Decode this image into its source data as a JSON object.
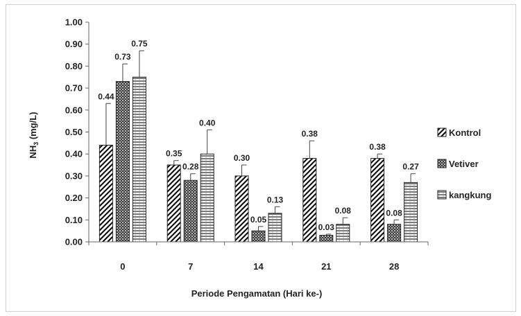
{
  "chart_data": {
    "type": "bar",
    "title": "",
    "xlabel": "Periode Pengamatan (Hari ke-)",
    "ylabel": "NH",
    "ylabel_sub": "3",
    "ylabel_unit": " (mg/L)",
    "ylim": [
      0,
      1.0
    ],
    "ytick_step": 0.1,
    "ytick_labels": [
      "0.00",
      "0.10",
      "0.20",
      "0.30",
      "0.40",
      "0.50",
      "0.60",
      "0.70",
      "0.80",
      "0.90",
      "1.00"
    ],
    "categories": [
      "0",
      "7",
      "14",
      "21",
      "28"
    ],
    "grid": false,
    "legend_position": "right",
    "error_bars": true,
    "series": [
      {
        "name": "Kontrol",
        "pattern": "diagonal",
        "values": [
          0.44,
          0.35,
          0.3,
          0.38,
          0.38
        ],
        "labels": [
          "0.44",
          "0.35",
          "0.30",
          "0.38",
          "0.38"
        ],
        "errors": [
          0.19,
          0.02,
          0.05,
          0.08,
          0.02
        ]
      },
      {
        "name": "Vetiver",
        "pattern": "crosshatch",
        "values": [
          0.73,
          0.28,
          0.05,
          0.03,
          0.08
        ],
        "labels": [
          "0.73",
          "0.28",
          "0.05",
          "0.03",
          "0.08"
        ],
        "errors": [
          0.08,
          0.03,
          0.02,
          0.005,
          0.02
        ]
      },
      {
        "name": "kangkung",
        "pattern": "horizontal",
        "values": [
          0.75,
          0.4,
          0.13,
          0.08,
          0.27
        ],
        "labels": [
          "0.75",
          "0.40",
          "0.13",
          "0.08",
          "0.27"
        ],
        "errors": [
          0.12,
          0.11,
          0.03,
          0.03,
          0.04
        ]
      }
    ]
  }
}
